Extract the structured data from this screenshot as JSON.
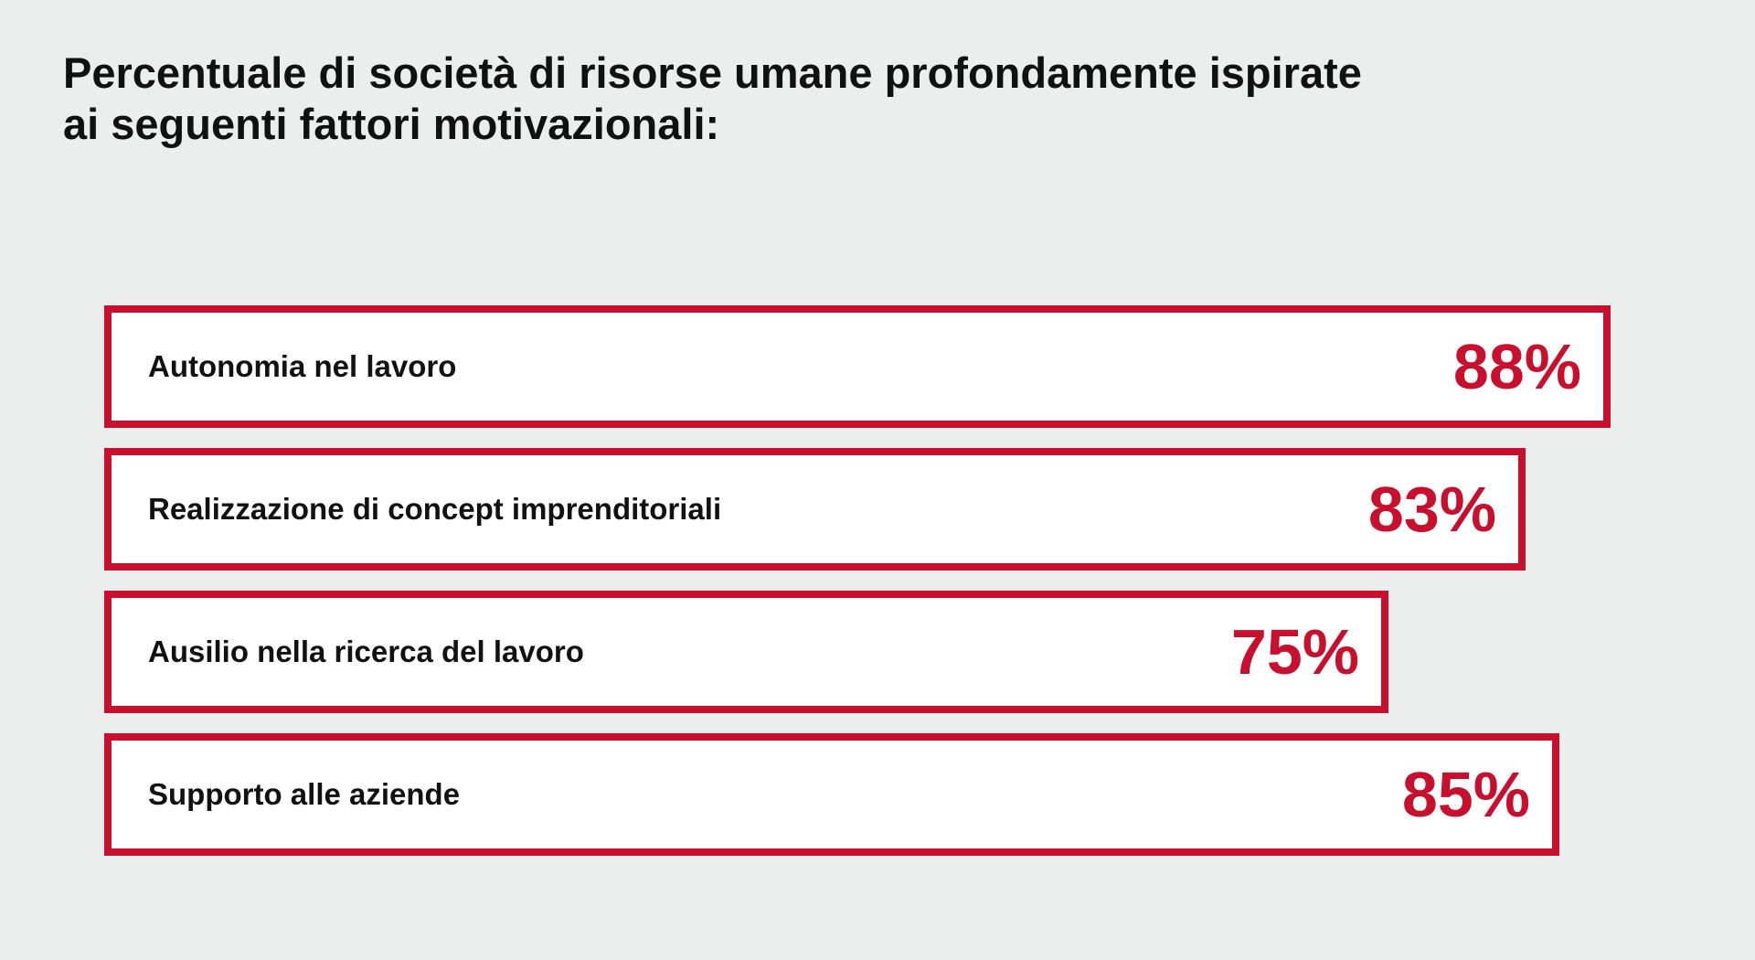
{
  "chart_data": {
    "type": "bar",
    "orientation": "horizontal",
    "title": "Percentuale di società di risorse umane profondamente ispirate ai seguenti fattori motivazionali:",
    "title_lines": [
      "Percentuale di società di risorse umane profondamente ispirate",
      "ai seguenti fattori motivazionali:"
    ],
    "categories": [
      "Autonomia nel lavoro",
      "Realizzazione di concept imprenditoriali",
      "Ausilio nella ricerca del lavoro",
      "Supporto alle aziende"
    ],
    "values": [
      88,
      83,
      75,
      85
    ],
    "value_labels": [
      "88%",
      "83%",
      "75%",
      "85%"
    ],
    "unit": "%",
    "colors": {
      "accent": "#c8102e",
      "bar_fill": "#ffffff",
      "background": "#eceeed",
      "text": "#111111"
    }
  }
}
